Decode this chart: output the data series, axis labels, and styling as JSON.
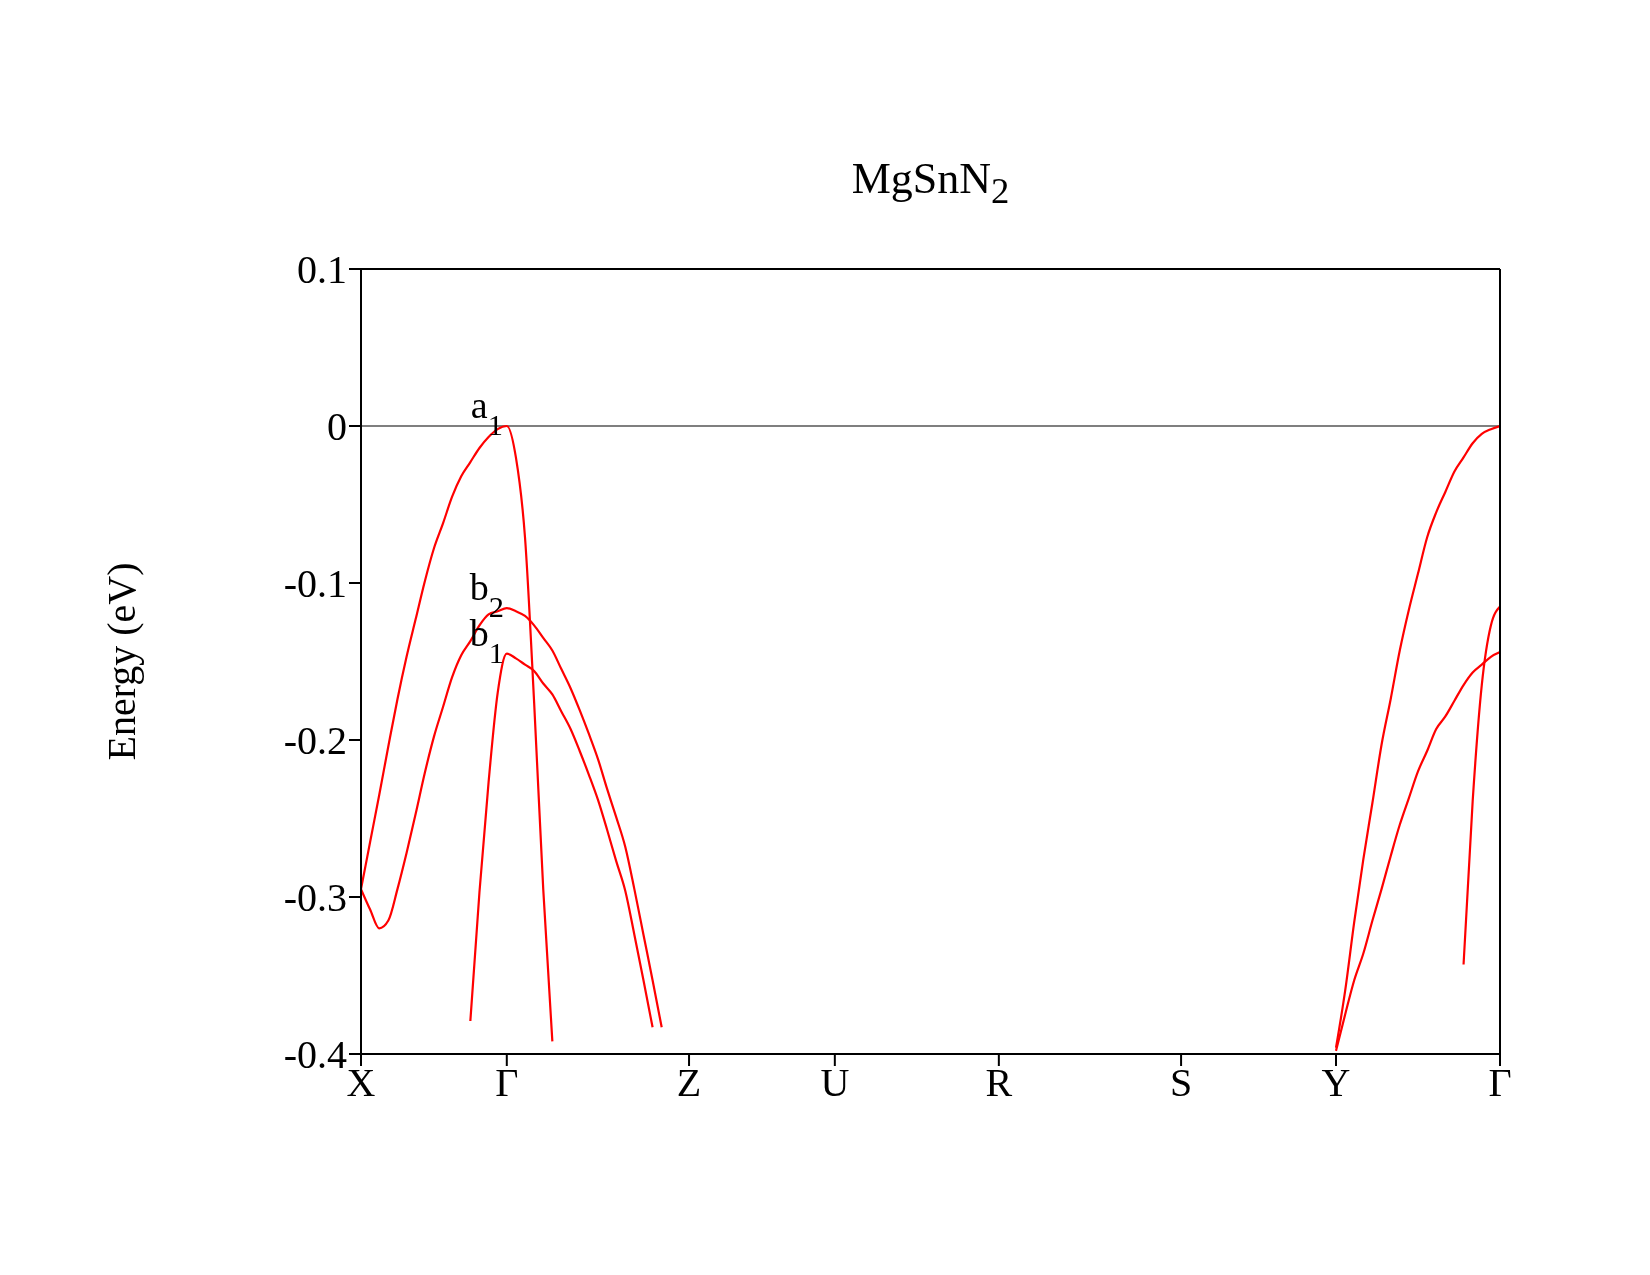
{
  "chart_data": {
    "type": "line",
    "title": "MgSnN$_{2}$",
    "ylabel": "Energy (eV)",
    "categories": [
      "X",
      null,
      null,
      null,
      null,
      null,
      null,
      null,
      null,
      null,
      null,
      null,
      null,
      null,
      null,
      null,
      "Γ",
      null,
      null,
      null,
      null,
      null,
      null,
      null,
      null,
      null,
      null,
      null,
      null,
      null,
      null,
      null,
      null,
      null,
      null,
      null,
      "Z",
      null,
      null,
      null,
      null,
      null,
      null,
      null,
      null,
      null,
      null,
      null,
      null,
      null,
      null,
      null,
      "U",
      null,
      null,
      null,
      null,
      null,
      null,
      null,
      null,
      null,
      null,
      null,
      null,
      null,
      null,
      null,
      null,
      null,
      "R",
      null,
      null,
      null,
      null,
      null,
      null,
      null,
      null,
      null,
      null,
      null,
      null,
      null,
      null,
      null,
      null,
      null,
      null,
      null,
      "S",
      null,
      null,
      null,
      null,
      null,
      null,
      null,
      null,
      null,
      null,
      null,
      null,
      null,
      null,
      null,
      null,
      "Y",
      null,
      null,
      null,
      null,
      null,
      null,
      null,
      null,
      null,
      null,
      null,
      null,
      null,
      null,
      null,
      null,
      null,
      "Γ"
    ],
    "ylim": [
      -0.4,
      0.1
    ],
    "yticks": [
      0.1,
      0,
      -0.1,
      -0.2,
      -0.3,
      -0.4
    ],
    "marker": "none",
    "line_style": "solid",
    "ref_lines": [
      {
        "axis": "y",
        "value": 0,
        "color": "#000000"
      }
    ],
    "annotations": [
      {
        "text": "a$_{1}$",
        "x": "Γ",
        "y": 0
      },
      {
        "text": "b$_{2}$",
        "x": "Γ",
        "y": -0.116
      },
      {
        "text": "b$_{1}$",
        "x": "Γ",
        "y": -0.145
      }
    ],
    "series": [
      {
        "color": "#ff0000",
        "values": [
          -0.295,
          -0.265,
          -0.235,
          -0.204,
          -0.174,
          -0.147,
          -0.123,
          -0.099,
          -0.078,
          -0.062,
          -0.045,
          -0.032,
          -0.023,
          -0.014,
          -0.007,
          -0.002,
          0,
          -0.02,
          -0.071,
          -0.176,
          -0.295,
          -0.392,
          null,
          null,
          null,
          null,
          null,
          null,
          null,
          null,
          null,
          null,
          null,
          null,
          null,
          null,
          null,
          null,
          null,
          null,
          null,
          null,
          null,
          null,
          null,
          null,
          null,
          null,
          null,
          null,
          null,
          null,
          null,
          null,
          null,
          null,
          null,
          null,
          null,
          null,
          null,
          null,
          null,
          null,
          null,
          null,
          null,
          null,
          null,
          null,
          null,
          null,
          null,
          null,
          null,
          null,
          null,
          null,
          null,
          null,
          null,
          null,
          null,
          null,
          null,
          null,
          null,
          null,
          null,
          null,
          null,
          null,
          null,
          null,
          null,
          null,
          null,
          null,
          null,
          null,
          null,
          null,
          null,
          null,
          null,
          null,
          null,
          null,
          null,
          null,
          null,
          null,
          null,
          null,
          null,
          null,
          null,
          null,
          null,
          null,
          null,
          null,
          null,
          null,
          null,
          null
        ]
      },
      {
        "color": "#ff0000",
        "values": [
          -0.295,
          -0.308,
          -0.32,
          -0.315,
          -0.295,
          -0.272,
          -0.247,
          -0.221,
          -0.198,
          -0.179,
          -0.16,
          -0.146,
          -0.137,
          -0.127,
          -0.12,
          -0.118,
          -0.116,
          -0.118,
          -0.121,
          -0.127,
          -0.135,
          -0.143,
          -0.155,
          -0.167,
          -0.181,
          -0.196,
          -0.212,
          -0.231,
          -0.249,
          -0.268,
          -0.295,
          -0.324,
          -0.353,
          -0.383,
          null,
          null,
          null,
          null,
          null,
          null,
          null,
          null,
          null,
          null,
          null,
          null,
          null,
          null,
          null,
          null,
          null,
          null,
          null,
          null,
          null,
          null,
          null,
          null,
          null,
          null,
          null,
          null,
          null,
          null,
          null,
          null,
          null,
          null,
          null,
          null,
          null,
          null,
          null,
          null,
          null,
          null,
          null,
          null,
          null,
          null,
          null,
          null,
          null,
          null,
          null,
          null,
          null,
          null,
          null,
          null,
          null,
          null,
          null,
          null,
          null,
          null,
          null,
          null,
          null,
          null,
          null,
          null,
          null,
          null,
          null,
          null,
          null,
          null,
          null,
          null,
          null,
          null,
          null,
          null,
          null,
          null,
          null,
          null,
          null,
          null,
          null,
          null,
          null,
          null,
          null,
          null
        ]
      },
      {
        "color": "#ff0000",
        "values": [
          null,
          null,
          null,
          null,
          null,
          null,
          null,
          null,
          null,
          null,
          null,
          null,
          -0.379,
          -0.297,
          -0.227,
          -0.17,
          -0.145,
          -0.148,
          -0.152,
          -0.156,
          -0.164,
          -0.171,
          -0.182,
          -0.193,
          -0.207,
          -0.222,
          -0.238,
          -0.257,
          -0.277,
          -0.296,
          -0.324,
          -0.353,
          -0.383,
          null,
          null,
          null,
          null,
          null,
          null,
          null,
          null,
          null,
          null,
          null,
          null,
          null,
          null,
          null,
          null,
          null,
          null,
          null,
          null,
          null,
          null,
          null,
          null,
          null,
          null,
          null,
          null,
          null,
          null,
          null,
          null,
          null,
          null,
          null,
          null,
          null,
          null,
          null,
          null,
          null,
          null,
          null,
          null,
          null,
          null,
          null,
          null,
          null,
          null,
          null,
          null,
          null,
          null,
          null,
          null,
          null,
          null,
          null,
          null,
          null,
          null,
          null,
          null,
          null,
          null,
          null,
          null,
          null,
          null,
          null,
          null,
          null,
          null,
          null,
          null,
          null,
          null,
          null,
          null,
          null,
          null,
          null,
          null,
          null,
          null,
          null,
          null,
          null,
          null,
          null,
          null,
          null
        ]
      },
      {
        "color": "#ff0000",
        "values": [
          null,
          null,
          null,
          null,
          null,
          null,
          null,
          null,
          null,
          null,
          null,
          null,
          null,
          null,
          null,
          null,
          null,
          null,
          null,
          null,
          null,
          null,
          null,
          null,
          null,
          null,
          null,
          null,
          null,
          null,
          null,
          null,
          null,
          null,
          null,
          null,
          null,
          null,
          null,
          null,
          null,
          null,
          null,
          null,
          null,
          null,
          null,
          null,
          null,
          null,
          null,
          null,
          null,
          null,
          null,
          null,
          null,
          null,
          null,
          null,
          null,
          null,
          null,
          null,
          null,
          null,
          null,
          null,
          null,
          null,
          null,
          null,
          null,
          null,
          null,
          null,
          null,
          null,
          null,
          null,
          null,
          null,
          null,
          null,
          null,
          null,
          null,
          null,
          null,
          null,
          null,
          null,
          null,
          null,
          null,
          null,
          null,
          null,
          null,
          null,
          null,
          null,
          null,
          null,
          null,
          null,
          null,
          -0.396,
          -0.36,
          -0.316,
          -0.276,
          -0.24,
          -0.203,
          -0.174,
          -0.143,
          -0.117,
          -0.094,
          -0.071,
          -0.055,
          -0.042,
          -0.029,
          -0.02,
          -0.011,
          -0.005,
          -0.002,
          0
        ]
      },
      {
        "color": "#ff0000",
        "values": [
          null,
          null,
          null,
          null,
          null,
          null,
          null,
          null,
          null,
          null,
          null,
          null,
          null,
          null,
          null,
          null,
          null,
          null,
          null,
          null,
          null,
          null,
          null,
          null,
          null,
          null,
          null,
          null,
          null,
          null,
          null,
          null,
          null,
          null,
          null,
          null,
          null,
          null,
          null,
          null,
          null,
          null,
          null,
          null,
          null,
          null,
          null,
          null,
          null,
          null,
          null,
          null,
          null,
          null,
          null,
          null,
          null,
          null,
          null,
          null,
          null,
          null,
          null,
          null,
          null,
          null,
          null,
          null,
          null,
          null,
          null,
          null,
          null,
          null,
          null,
          null,
          null,
          null,
          null,
          null,
          null,
          null,
          null,
          null,
          null,
          null,
          null,
          null,
          null,
          null,
          null,
          null,
          null,
          null,
          null,
          null,
          null,
          null,
          null,
          null,
          null,
          null,
          null,
          null,
          null,
          null,
          null,
          -0.398,
          -0.375,
          -0.353,
          -0.336,
          -0.315,
          -0.295,
          -0.274,
          -0.254,
          -0.237,
          -0.22,
          -0.207,
          -0.193,
          -0.185,
          -0.175,
          -0.165,
          -0.157,
          -0.152,
          -0.147,
          -0.144
        ]
      },
      {
        "color": "#ff0000",
        "values": [
          null,
          null,
          null,
          null,
          null,
          null,
          null,
          null,
          null,
          null,
          null,
          null,
          null,
          null,
          null,
          null,
          null,
          null,
          null,
          null,
          null,
          null,
          null,
          null,
          null,
          null,
          null,
          null,
          null,
          null,
          null,
          null,
          null,
          null,
          null,
          null,
          null,
          null,
          null,
          null,
          null,
          null,
          null,
          null,
          null,
          null,
          null,
          null,
          null,
          null,
          null,
          null,
          null,
          null,
          null,
          null,
          null,
          null,
          null,
          null,
          null,
          null,
          null,
          null,
          null,
          null,
          null,
          null,
          null,
          null,
          null,
          null,
          null,
          null,
          null,
          null,
          null,
          null,
          null,
          null,
          null,
          null,
          null,
          null,
          null,
          null,
          null,
          null,
          null,
          null,
          null,
          null,
          null,
          null,
          null,
          null,
          null,
          null,
          null,
          null,
          null,
          null,
          null,
          null,
          null,
          null,
          null,
          null,
          null,
          null,
          null,
          null,
          null,
          null,
          null,
          null,
          null,
          null,
          null,
          null,
          null,
          -0.343,
          -0.239,
          -0.165,
          -0.127,
          -0.115
        ]
      }
    ]
  }
}
